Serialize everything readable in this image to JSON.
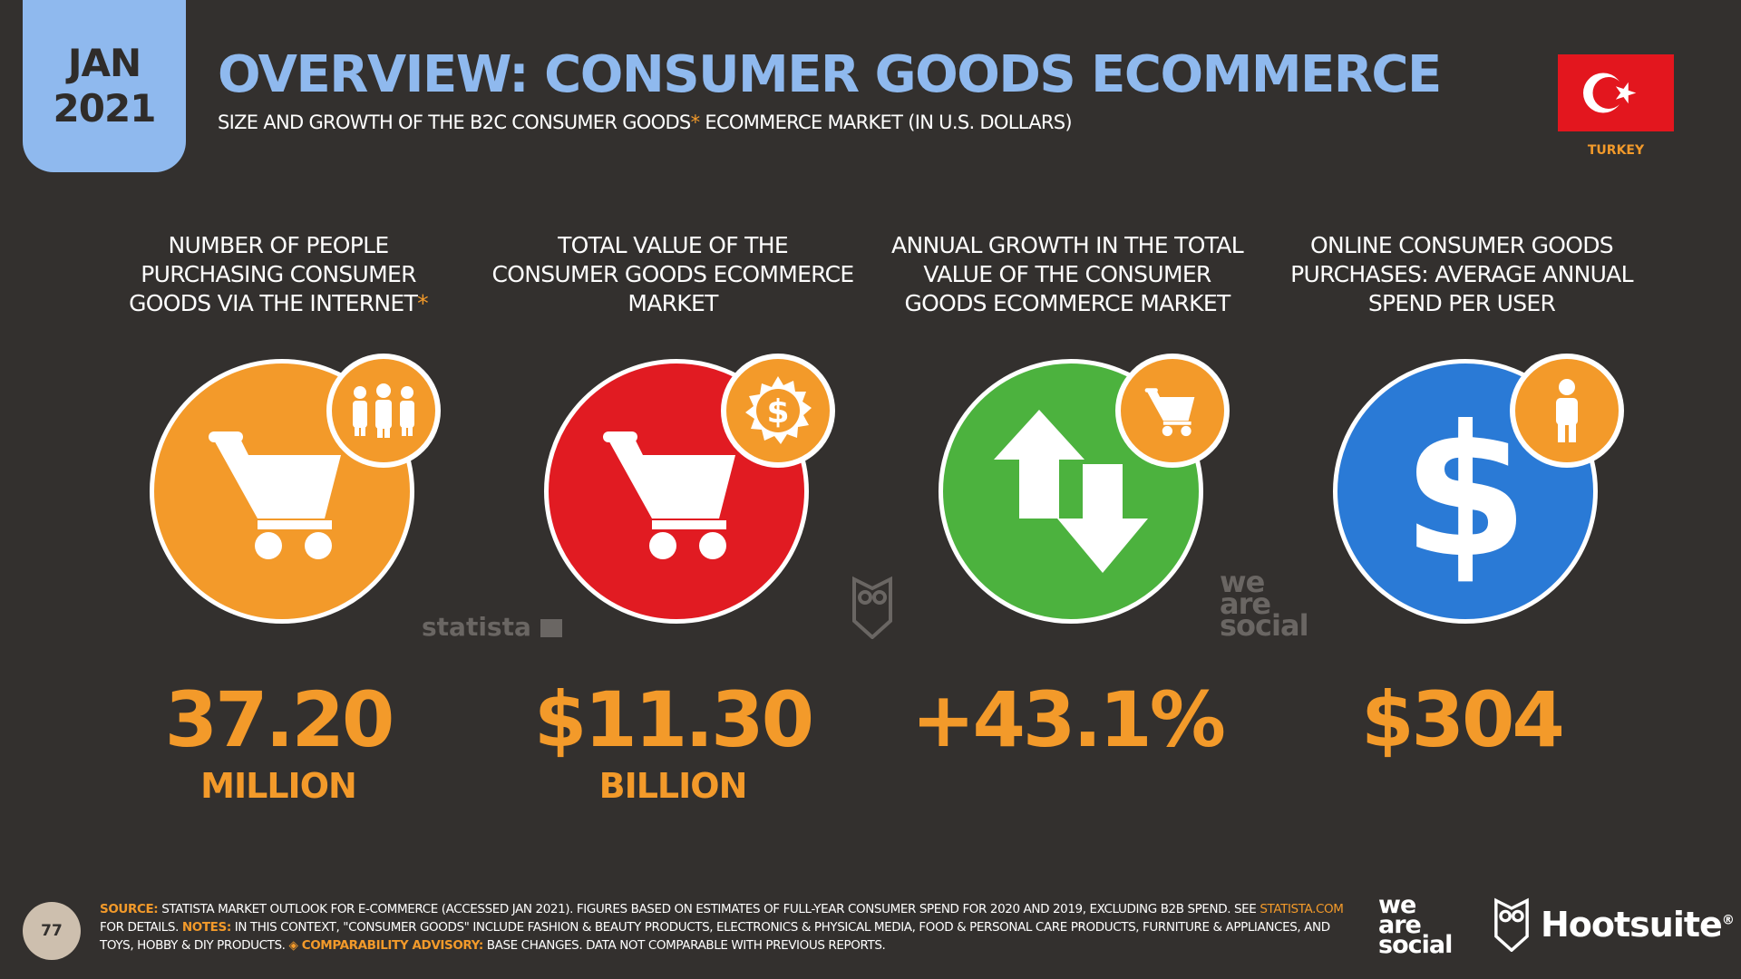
{
  "header": {
    "date_month": "JAN",
    "date_year": "2021",
    "title": "OVERVIEW: CONSUMER GOODS ECOMMERCE",
    "subtitle_before": "SIZE AND GROWTH OF THE B2C CONSUMER GOODS",
    "subtitle_asterisk": "*",
    "subtitle_after": "ECOMMERCE MARKET (IN U.S. DOLLARS)",
    "country": "TURKEY"
  },
  "stats": [
    {
      "label": "NUMBER OF PEOPLE PURCHASING CONSUMER GOODS VIA THE INTERNET",
      "label_asterisk": "*",
      "value": "37.20",
      "unit": "MILLION",
      "main_icon": "shopping-cart-icon",
      "badge_icon": "people-group-icon",
      "color": "#f39a2a"
    },
    {
      "label": "TOTAL VALUE OF THE CONSUMER GOODS ECOMMERCE MARKET",
      "label_asterisk": "",
      "value": "$11.30",
      "unit": "BILLION",
      "main_icon": "shopping-cart-icon",
      "badge_icon": "dollar-coin-icon",
      "color": "#e11b22"
    },
    {
      "label": "ANNUAL GROWTH IN THE TOTAL VALUE OF THE CONSUMER GOODS ECOMMERCE MARKET",
      "label_asterisk": "",
      "value": "+43.1%",
      "unit": "",
      "main_icon": "up-down-arrows-icon",
      "badge_icon": "shopping-cart-icon",
      "color": "#4cb23e"
    },
    {
      "label": "ONLINE CONSUMER GOODS PURCHASES: AVERAGE ANNUAL SPEND PER USER",
      "label_asterisk": "",
      "value": "$304",
      "unit": "",
      "main_icon": "dollar-sign-icon",
      "badge_icon": "person-icon",
      "color": "#2a7ad6"
    }
  ],
  "watermarks": {
    "statista": "statista",
    "we_are_social": [
      "we",
      "are",
      "social"
    ]
  },
  "footer": {
    "page_number": "77",
    "source_label": "SOURCE:",
    "source_text": "STATISTA MARKET OUTLOOK FOR E-COMMERCE (ACCESSED JAN 2021). FIGURES BASED ON ESTIMATES OF FULL-YEAR CONSUMER SPEND FOR 2020 AND 2019, EXCLUDING B2B SPEND. SEE",
    "source_link": "STATISTA.COM",
    "source_after_link": "FOR DETAILS.",
    "notes_label": "NOTES:",
    "notes_text": "IN THIS CONTEXT, \"CONSUMER GOODS\" INCLUDE FASHION & BEAUTY PRODUCTS, ELECTRONICS & PHYSICAL MEDIA, FOOD & PERSONAL CARE PRODUCTS, FURNITURE & APPLIANCES, AND TOYS, HOBBY & DIY PRODUCTS.",
    "advisory_label": "◈ COMPARABILITY ADVISORY:",
    "advisory_text": "BASE CHANGES. DATA NOT COMPARABLE WITH PREVIOUS REPORTS.",
    "brand_1": [
      "we",
      "are",
      "social"
    ],
    "brand_2": "Hootsuite",
    "brand_2_mark": "®"
  }
}
